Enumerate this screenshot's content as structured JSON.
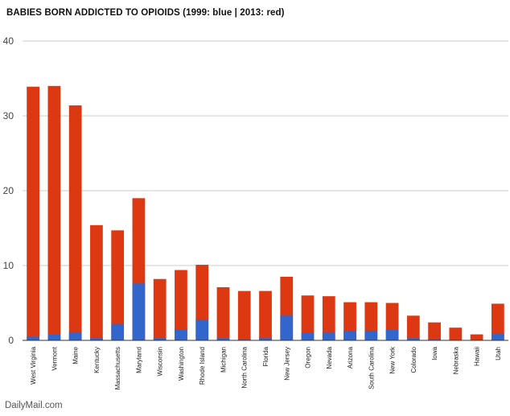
{
  "chart_data": {
    "type": "bar",
    "title": "BABIES BORN ADDICTED TO OPIOIDS (1999: blue | 2013: red)",
    "xlabel": "",
    "ylabel": "",
    "ylim": [
      0,
      40
    ],
    "yticks": [
      "0",
      "10",
      "20",
      "30",
      "40"
    ],
    "grid": true,
    "legend": "none",
    "stacked_overlay": true,
    "categories": [
      "West Virginia",
      "Vermont",
      "Maine",
      "Kentucky",
      "Massachusetts",
      "Maryland",
      "Wisconsin",
      "Washington",
      "Rhode Island",
      "Michigan",
      "North Carolina",
      "Florida",
      "New Jersey",
      "Oregon",
      "Nevada",
      "Arizona",
      "South Carolina",
      "New York",
      "Colorado",
      "Iowa",
      "Nebraska",
      "Hawaii",
      "Utah"
    ],
    "series": [
      {
        "name": "2013",
        "color": "#dc3912",
        "values": [
          33.9,
          34.0,
          31.4,
          15.4,
          14.7,
          19.0,
          8.2,
          9.4,
          10.1,
          7.1,
          6.6,
          6.6,
          8.5,
          6.0,
          5.9,
          5.1,
          5.1,
          5.0,
          3.3,
          2.4,
          1.7,
          0.8,
          4.9
        ]
      },
      {
        "name": "1999",
        "color": "#3366cc",
        "values": [
          0.5,
          0.8,
          1.1,
          0.3,
          2.2,
          7.6,
          0.3,
          1.5,
          2.8,
          0.3,
          0.2,
          0.3,
          3.3,
          1.0,
          1.1,
          1.3,
          1.3,
          1.4,
          0.3,
          0.2,
          0.0,
          0.0,
          0.9
        ]
      }
    ]
  },
  "watermark": {
    "text": "DailyMail.com"
  }
}
